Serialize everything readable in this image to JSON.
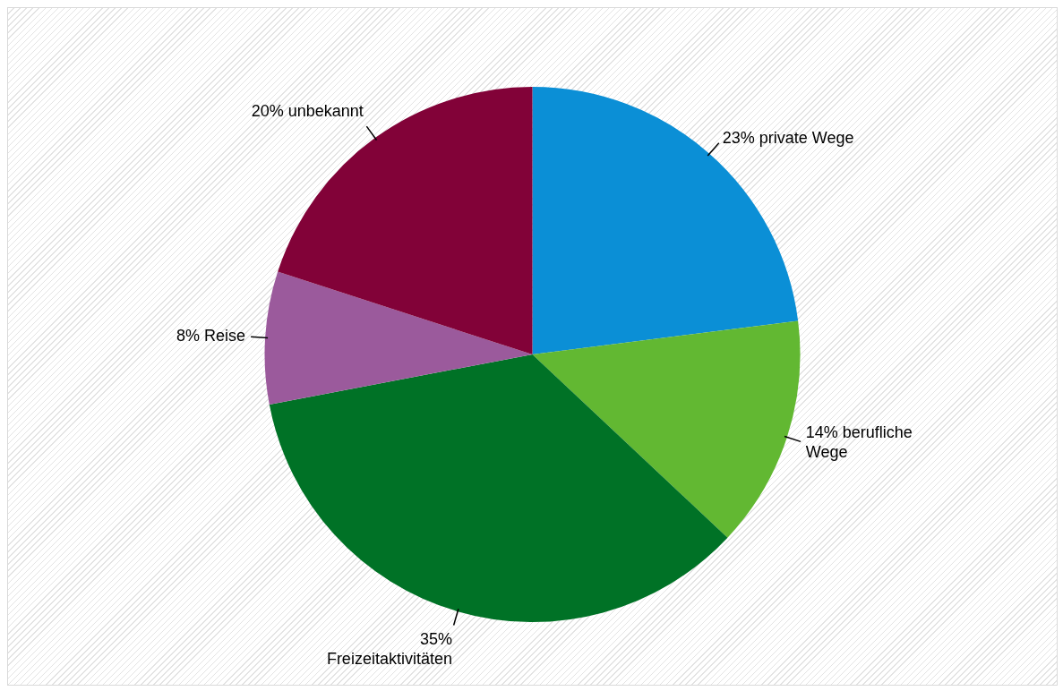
{
  "chart_data": {
    "type": "pie",
    "categories": [
      "private Wege",
      "berufliche Wege",
      "Freizeitaktivitäten",
      "Reise",
      "unbekannt"
    ],
    "values": [
      23,
      14,
      35,
      8,
      20
    ],
    "colors": [
      "#0b8fd6",
      "#62b832",
      "#007226",
      "#9b5a9c",
      "#820238"
    ],
    "value_labels": [
      "23%",
      "14%",
      "35%",
      "8%",
      "20%"
    ]
  }
}
